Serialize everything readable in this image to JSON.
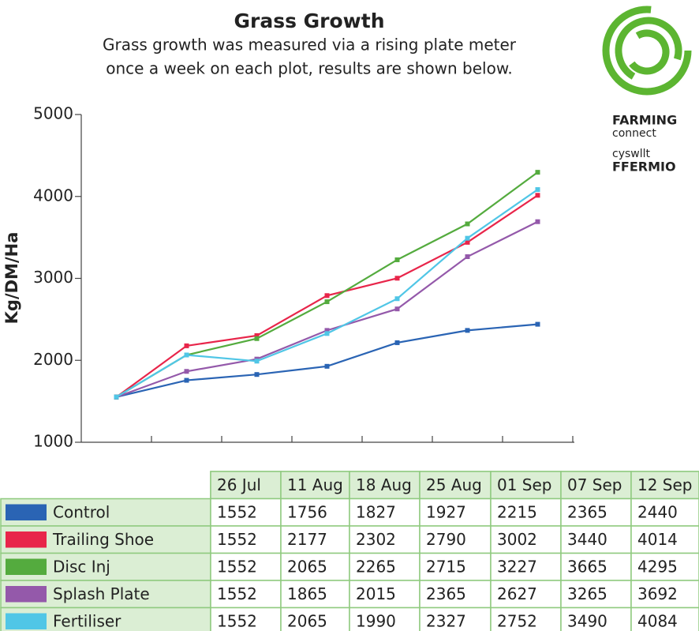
{
  "chart_data": {
    "type": "line",
    "title": "Grass Growth",
    "subtitle": [
      "Grass growth was measured via a rising plate meter",
      "once a week on each plot, results are shown below."
    ],
    "y_label": "Kg/DM/Ha",
    "categories": [
      "26 Jul",
      "11 Aug",
      "18 Aug",
      "25 Aug",
      "01 Sep",
      "07 Sep",
      "12 Sep"
    ],
    "ylim": [
      1000,
      5000
    ],
    "yticks": [
      1000,
      2000,
      3000,
      4000,
      5000
    ],
    "series": [
      {
        "name": "Control",
        "color": "#2a64b4",
        "values": [
          1552,
          1756,
          1827,
          1927,
          2215,
          2365,
          2440
        ]
      },
      {
        "name": "Trailing Shoe",
        "color": "#e8254a",
        "values": [
          1552,
          2177,
          2302,
          2790,
          3002,
          3440,
          4014
        ]
      },
      {
        "name": "Disc Inj",
        "color": "#54ab3e",
        "values": [
          1552,
          2065,
          2265,
          2715,
          3227,
          3665,
          4295
        ]
      },
      {
        "name": "Splash Plate",
        "color": "#9459aa",
        "values": [
          1552,
          1865,
          2015,
          2365,
          2627,
          3265,
          3692
        ]
      },
      {
        "name": "Fertiliser",
        "color": "#50c6e6",
        "values": [
          1552,
          2065,
          1990,
          2327,
          2752,
          3490,
          4084
        ]
      }
    ]
  },
  "logo": {
    "lines": [
      "FARMING",
      "connect",
      "cyswllt",
      "FFERMIO"
    ]
  }
}
